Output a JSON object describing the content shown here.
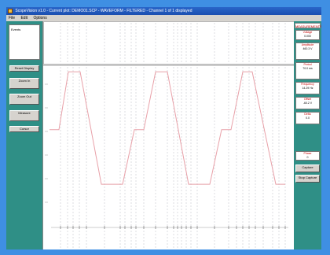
{
  "window": {
    "title": "ScopeVision v1.0 - Current plot: DEMO01.SCP - WAVEFORM - FILTERED - Channel 1 of 1 displayed"
  },
  "menu": {
    "items": [
      "File",
      "Edit",
      "Options"
    ]
  },
  "left_panel": {
    "message_label": "Events",
    "buttons": [
      "Reset Display",
      "Zoom In",
      "Zoom Out",
      "Measure",
      "Cursor"
    ]
  },
  "right_panel": {
    "header": "MEASUREMENTS",
    "boxes": [
      {
        "label": "Voltage",
        "value": "0.000"
      },
      {
        "label": "Amplitude",
        "value": "460.3 V"
      },
      {
        "label": "Period",
        "value": "70.0 ms"
      },
      {
        "label": "Frequency",
        "value": "14.29 Hz"
      },
      {
        "label": "Offset",
        "value": "-60.2 V"
      },
      {
        "label": "Delta",
        "value": "0.0"
      },
      {
        "label": "Phase",
        "value": "0"
      }
    ],
    "buttons": [
      "Capture",
      "Stop Capture"
    ]
  },
  "colors": {
    "trace": "#e8a0a8",
    "grid": "#b8bcc4",
    "background": "#2f8f86",
    "desktop": "#3f8fe3"
  },
  "chart_data": {
    "type": "line",
    "title": "",
    "xlabel": "",
    "ylabel": "",
    "grid": true,
    "series": [
      {
        "values": [
          [
            0,
            0.62
          ],
          [
            0.04,
            0.62
          ],
          [
            0.08,
            0.97
          ],
          [
            0.13,
            0.97
          ],
          [
            0.22,
            0.29
          ],
          [
            0.31,
            0.29
          ],
          [
            0.36,
            0.62
          ],
          [
            0.4,
            0.62
          ],
          [
            0.45,
            0.97
          ],
          [
            0.5,
            0.97
          ],
          [
            0.59,
            0.29
          ],
          [
            0.68,
            0.29
          ],
          [
            0.73,
            0.62
          ],
          [
            0.77,
            0.62
          ],
          [
            0.82,
            0.97
          ],
          [
            0.86,
            0.97
          ],
          [
            0.96,
            0.29
          ],
          [
            1.0,
            0.29
          ]
        ]
      }
    ]
  }
}
